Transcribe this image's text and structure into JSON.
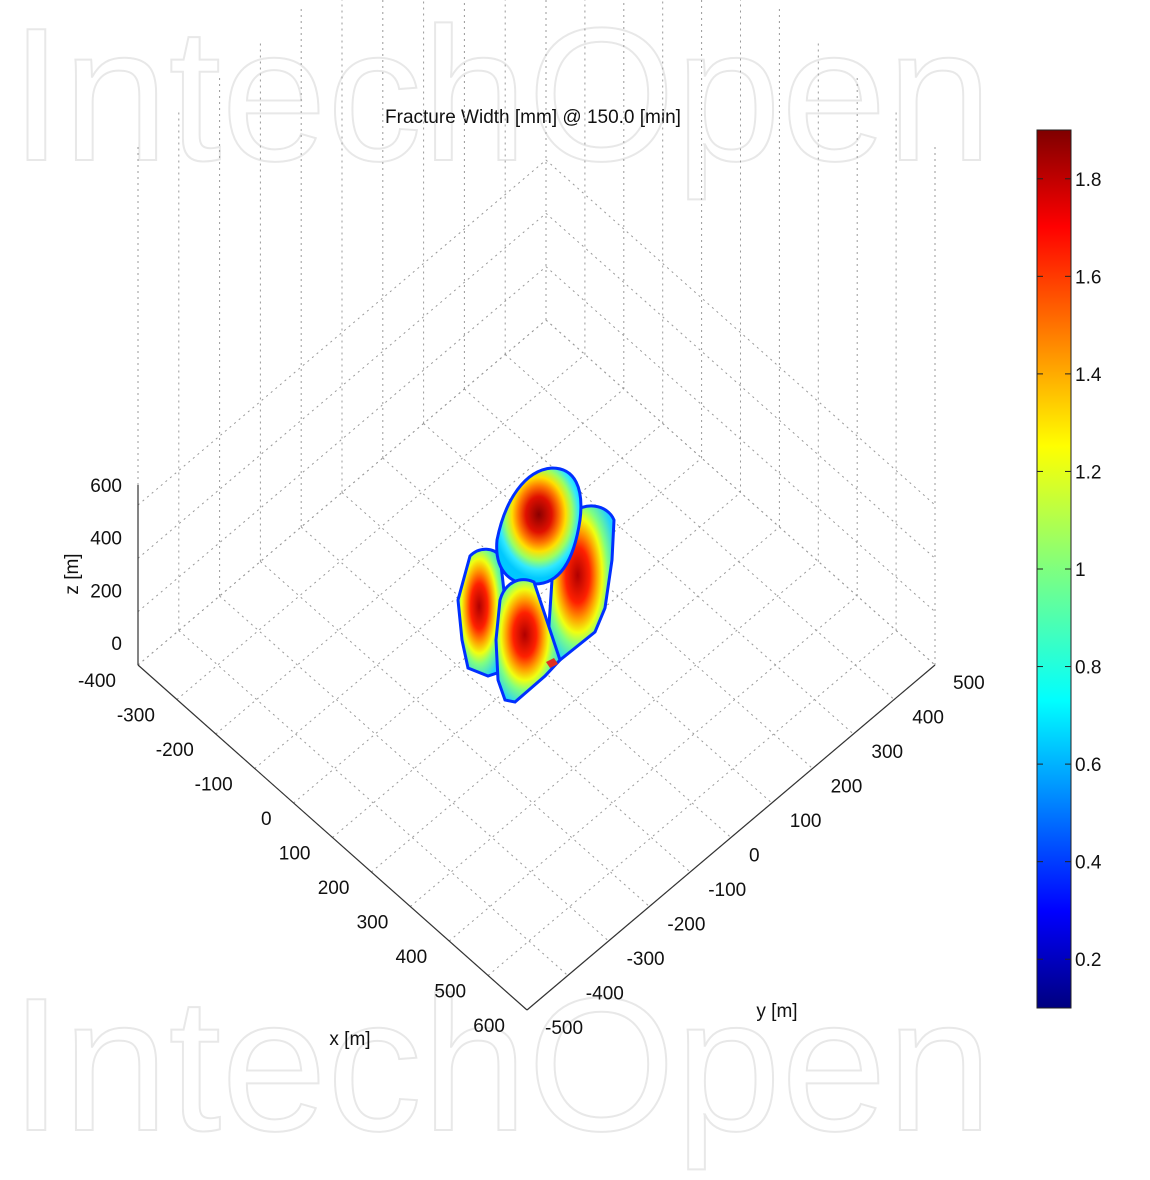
{
  "watermark": "IntechOpen",
  "chart_data": {
    "type": "heatmap",
    "subtype": "3d-surface",
    "title": "Fracture Width  [mm] @ 150.0 [min]",
    "xlabel": "x  [m]",
    "ylabel": "y  [m]",
    "zlabel": "z  [m]",
    "x_ticks": [
      "-400",
      "-300",
      "-200",
      "-100",
      "0",
      "100",
      "200",
      "300",
      "400",
      "500",
      "600"
    ],
    "y_ticks": [
      "-500",
      "-400",
      "-300",
      "-200",
      "-100",
      "0",
      "100",
      "200",
      "300",
      "400",
      "500"
    ],
    "z_ticks": [
      "0",
      "200",
      "400",
      "600"
    ],
    "xlim": [
      -400,
      600
    ],
    "ylim": [
      -500,
      500
    ],
    "zlim": [
      0,
      600
    ],
    "grid": true,
    "colormap": "jet",
    "colorbar": {
      "range": [
        0.1,
        1.9
      ],
      "ticks": [
        "0.2",
        "0.4",
        "0.6",
        "0.8",
        "1",
        "1.2",
        "1.4",
        "1.6",
        "1.8"
      ],
      "tick_values": [
        0.2,
        0.4,
        0.6,
        0.8,
        1.0,
        1.2,
        1.4,
        1.6,
        1.8
      ],
      "placement": "right"
    },
    "lobes": [
      {
        "name": "left",
        "peak": 1.9
      },
      {
        "name": "center-top",
        "peak": 1.9
      },
      {
        "name": "right",
        "peak": 1.75
      },
      {
        "name": "center-lower",
        "peak": 1.8
      }
    ]
  }
}
